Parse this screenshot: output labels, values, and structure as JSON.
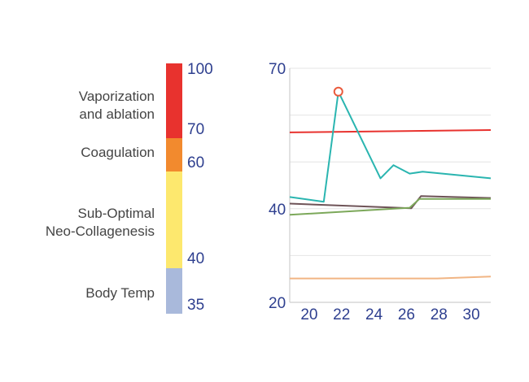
{
  "scale": {
    "segments": [
      {
        "name": "vaporization",
        "from": 70,
        "to": 100,
        "color": "#e8322e"
      },
      {
        "name": "coagulation",
        "from": 60,
        "to": 70,
        "color": "#f28a2e"
      },
      {
        "name": "neo-collagenesis",
        "from": 40,
        "to": 60,
        "color": "#fde86e"
      },
      {
        "name": "body-temp",
        "from": 35,
        "to": 40,
        "color": "#a9b9db"
      }
    ],
    "tick_labels": [
      "100",
      "70",
      "60",
      "40",
      "35"
    ],
    "zone_labels": {
      "vaporization": [
        "Vaporization",
        "and ablation"
      ],
      "coagulation": [
        "Coagulation"
      ],
      "neo_collagenesis": [
        "Sub-Optimal",
        "Neo-Collagenesis"
      ],
      "body_temp": [
        "Body Temp"
      ]
    }
  },
  "chart_data": {
    "type": "line",
    "title": "",
    "xlabel": "",
    "ylabel": "",
    "xlim": [
      18.8,
      31.2
    ],
    "ylim": [
      20,
      70
    ],
    "x_ticks": [
      20,
      22,
      24,
      26,
      28,
      30
    ],
    "y_ticks": [
      20,
      40,
      70
    ],
    "grid": "horizontal",
    "series": [
      {
        "color": "#e8322e",
        "x": [
          18.8,
          31.2
        ],
        "y": [
          56.3,
          56.8
        ]
      },
      {
        "color": "#2ab5b0",
        "x": [
          18.8,
          20.9,
          21.8,
          24.4,
          25.2,
          26.2,
          27.0,
          31.2
        ],
        "y": [
          42.5,
          41.5,
          65.0,
          46.5,
          49.3,
          47.5,
          47.9,
          46.5
        ],
        "marker": {
          "x": 21.8,
          "y": 65.0,
          "color": "#ea5a3c"
        }
      },
      {
        "color": "#6e5357",
        "x": [
          18.8,
          26.3,
          26.9,
          31.2
        ],
        "y": [
          41.1,
          40.1,
          42.7,
          42.3
        ]
      },
      {
        "color": "#7ca85a",
        "x": [
          18.8,
          26.2,
          26.8,
          31.2
        ],
        "y": [
          38.7,
          40.2,
          42.1,
          42.1
        ]
      },
      {
        "color": "#f1b584",
        "x": [
          18.8,
          27.9,
          31.2
        ],
        "y": [
          25.1,
          25.1,
          25.5
        ]
      }
    ]
  }
}
